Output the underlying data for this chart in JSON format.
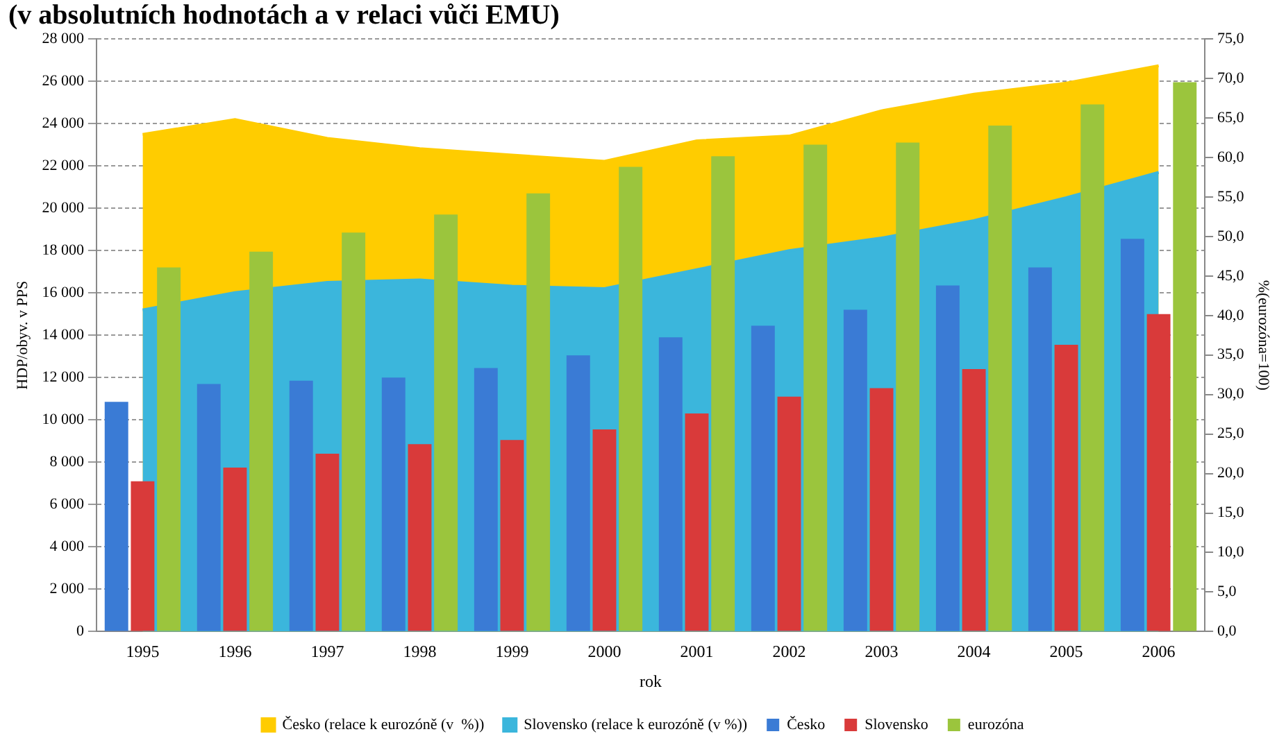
{
  "chart_data": {
    "type": "bar",
    "title": "(v absolutních hodnotách a v relaci vůči EMU)",
    "xlabel": "rok",
    "ylabel": "HDP/obyv. v PPS",
    "y2label": "%(eurozóna=100)",
    "categories": [
      "1995",
      "1996",
      "1997",
      "1998",
      "1999",
      "2000",
      "2001",
      "2002",
      "2003",
      "2004",
      "2005",
      "2006"
    ],
    "series": [
      {
        "name": "Česko (relace k eurozóně (v  %))",
        "type": "area",
        "axis": "y2",
        "color": "#ffcc00",
        "values": [
          62.9,
          64.8,
          62.4,
          61.1,
          60.3,
          59.5,
          62.1,
          62.7,
          65.9,
          68.0,
          69.4,
          71.6
        ]
      },
      {
        "name": "Slovensko (relace k eurozóně (v %))",
        "type": "area",
        "axis": "y2",
        "color": "#3bb6dc",
        "values": [
          40.7,
          42.9,
          44.2,
          44.5,
          43.7,
          43.4,
          45.8,
          48.2,
          49.8,
          52.0,
          54.9,
          58.1
        ]
      },
      {
        "name": "Česko",
        "color": "#3a7bd5",
        "values": [
          10850,
          11700,
          11850,
          12000,
          12450,
          13050,
          13900,
          14450,
          15200,
          16350,
          17200,
          18550
        ]
      },
      {
        "name": "Slovensko",
        "color": "#d93a3a",
        "values": [
          7100,
          7750,
          8400,
          8850,
          9050,
          9550,
          10300,
          11100,
          11500,
          12400,
          13550,
          15000
        ]
      },
      {
        "name": "eurozóna",
        "color": "#9bc53d",
        "values": [
          17200,
          17950,
          18850,
          19700,
          20700,
          21950,
          22450,
          23000,
          23100,
          23900,
          24900,
          25950
        ]
      }
    ],
    "ylim": [
      0,
      28000
    ],
    "yticks": [
      {
        "value": 0,
        "label": "0"
      },
      {
        "value": 2000,
        "label": "2 000"
      },
      {
        "value": 4000,
        "label": "4 000"
      },
      {
        "value": 6000,
        "label": "6 000"
      },
      {
        "value": 8000,
        "label": "8 000"
      },
      {
        "value": 10000,
        "label": "10 000"
      },
      {
        "value": 12000,
        "label": "12 000"
      },
      {
        "value": 14000,
        "label": "14 000"
      },
      {
        "value": 16000,
        "label": "16 000"
      },
      {
        "value": 18000,
        "label": "18 000"
      },
      {
        "value": 20000,
        "label": "20 000"
      },
      {
        "value": 22000,
        "label": "22 000"
      },
      {
        "value": 24000,
        "label": "24 000"
      },
      {
        "value": 26000,
        "label": "26 000"
      },
      {
        "value": 28000,
        "label": "28 000"
      }
    ],
    "y2lim": [
      0,
      75
    ],
    "y2ticks": [
      {
        "value": 0,
        "label": "0,0"
      },
      {
        "value": 5,
        "label": "5,0"
      },
      {
        "value": 10,
        "label": "10,0"
      },
      {
        "value": 15,
        "label": "15,0"
      },
      {
        "value": 20,
        "label": "20,0"
      },
      {
        "value": 25,
        "label": "25,0"
      },
      {
        "value": 30,
        "label": "30,0"
      },
      {
        "value": 35,
        "label": "35,0"
      },
      {
        "value": 40,
        "label": "40,0"
      },
      {
        "value": 45,
        "label": "45,0"
      },
      {
        "value": 50,
        "label": "50,0"
      },
      {
        "value": 55,
        "label": "55,0"
      },
      {
        "value": 60,
        "label": "60,0"
      },
      {
        "value": 65,
        "label": "65,0"
      },
      {
        "value": 70,
        "label": "70,0"
      },
      {
        "value": 75,
        "label": "75,0"
      }
    ],
    "grid": "y",
    "legend": "bottom"
  }
}
